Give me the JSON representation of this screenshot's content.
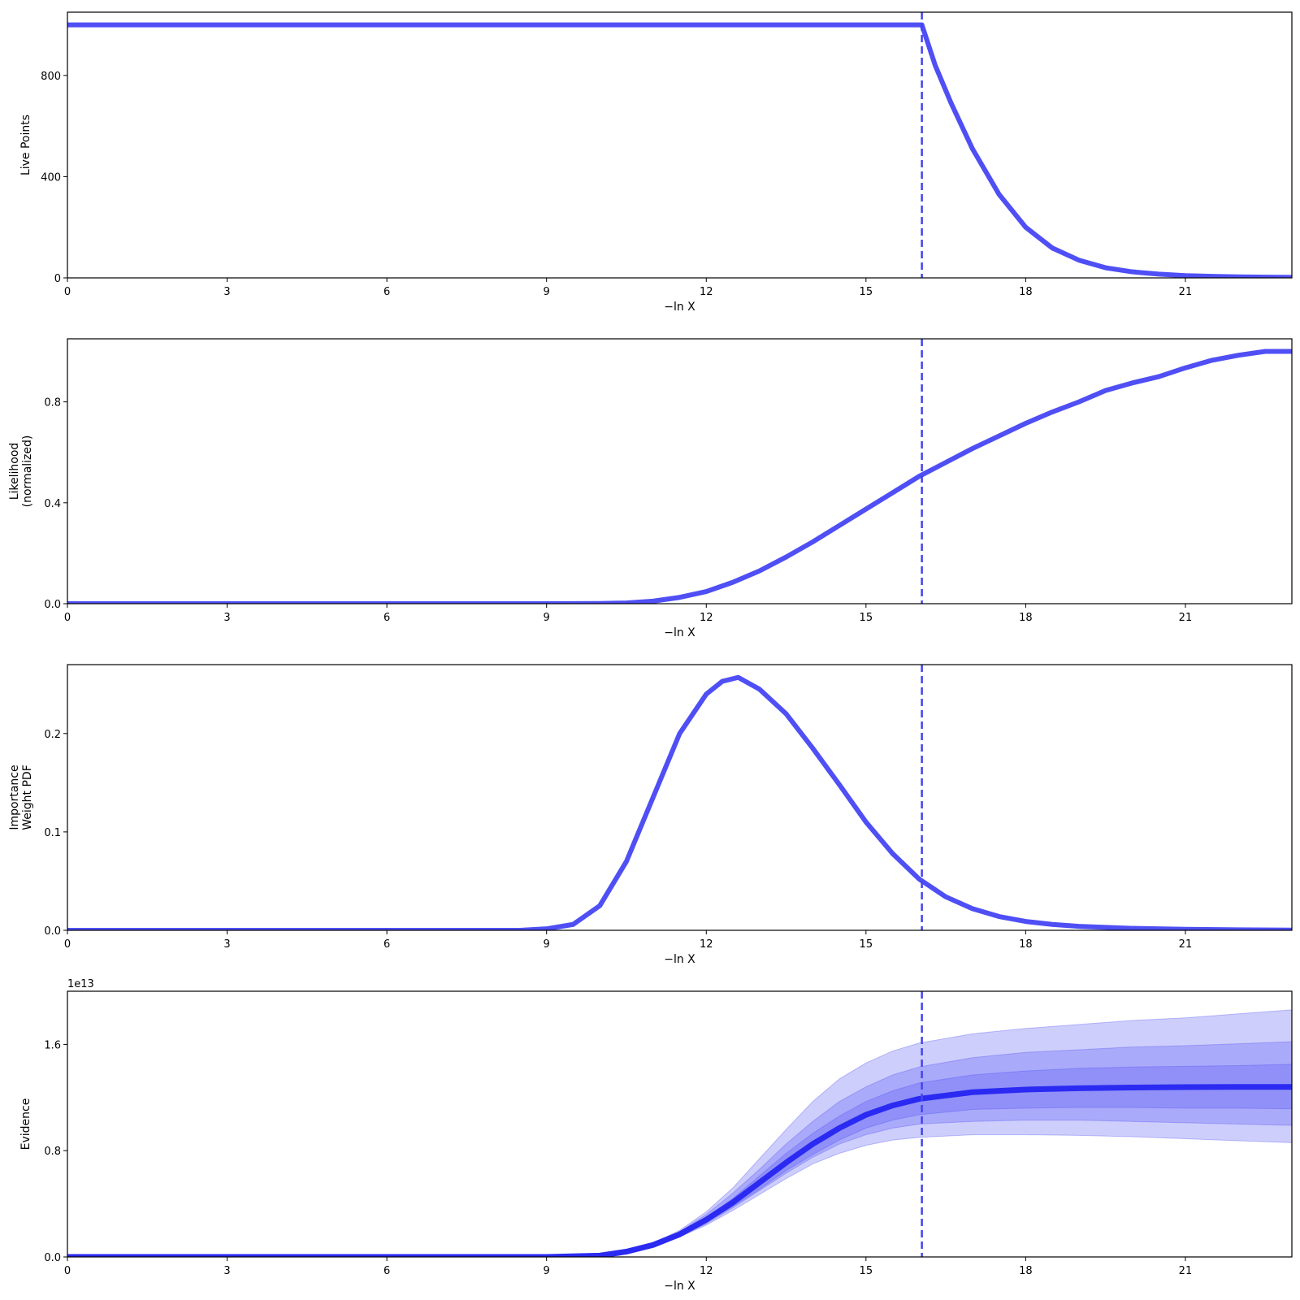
{
  "chart_data": [
    {
      "type": "line",
      "ylabel": [
        "Live Points"
      ],
      "xlabel": "−ln X",
      "xlim": [
        0,
        23
      ],
      "ylim": [
        0,
        1050
      ],
      "xticks": [
        0,
        3,
        6,
        9,
        12,
        15,
        18,
        21
      ],
      "yticks": [
        0,
        400,
        800
      ],
      "vline_x": 16.05,
      "series": [
        {
          "color": "#4f4ff5",
          "x": [
            0,
            16.0,
            16.05,
            16.3,
            16.6,
            17.0,
            17.5,
            18.0,
            18.5,
            19.0,
            19.5,
            20.0,
            20.5,
            21.0,
            21.5,
            22.0,
            22.5,
            23.0
          ],
          "y": [
            1000,
            1000,
            1000,
            840,
            690,
            510,
            330,
            200,
            118,
            70,
            40,
            24,
            15,
            9,
            6,
            4,
            3,
            2
          ]
        }
      ]
    },
    {
      "type": "line",
      "ylabel": [
        "Likelihood",
        "(normalized)"
      ],
      "xlabel": "−ln X",
      "xlim": [
        0,
        23
      ],
      "ylim": [
        0,
        1.05
      ],
      "xticks": [
        0,
        3,
        6,
        9,
        12,
        15,
        18,
        21
      ],
      "yticks": [
        0.0,
        0.4,
        0.8
      ],
      "ytick_labels": [
        "0.0",
        "0.4",
        "0.8"
      ],
      "vline_x": 16.05,
      "series": [
        {
          "color": "#4f4ff5",
          "x": [
            0,
            9.0,
            10.0,
            10.5,
            11.0,
            11.5,
            12.0,
            12.5,
            13.0,
            13.5,
            14.0,
            14.5,
            15.0,
            15.5,
            16.0,
            16.5,
            17.0,
            17.5,
            18.0,
            18.5,
            19.0,
            19.5,
            20.0,
            20.5,
            21.0,
            21.5,
            22.0,
            22.5,
            23.0
          ],
          "y": [
            0,
            0,
            0.001,
            0.003,
            0.01,
            0.025,
            0.048,
            0.085,
            0.13,
            0.185,
            0.245,
            0.31,
            0.375,
            0.44,
            0.505,
            0.56,
            0.615,
            0.665,
            0.715,
            0.76,
            0.8,
            0.845,
            0.875,
            0.9,
            0.935,
            0.965,
            0.985,
            1.0,
            1.0
          ]
        }
      ]
    },
    {
      "type": "line",
      "ylabel": [
        "Importance",
        "Weight PDF"
      ],
      "xlabel": "−ln X",
      "xlim": [
        0,
        23
      ],
      "ylim": [
        0,
        0.27
      ],
      "xticks": [
        0,
        3,
        6,
        9,
        12,
        15,
        18,
        21
      ],
      "yticks": [
        0.0,
        0.1,
        0.2
      ],
      "ytick_labels": [
        "0.0",
        "0.1",
        "0.2"
      ],
      "vline_x": 16.05,
      "series": [
        {
          "color": "#4f4ff5",
          "x": [
            0,
            8.5,
            9.0,
            9.5,
            10.0,
            10.5,
            11.0,
            11.5,
            12.0,
            12.3,
            12.6,
            13.0,
            13.5,
            14.0,
            14.5,
            15.0,
            15.5,
            16.0,
            16.5,
            17.0,
            17.5,
            18.0,
            18.5,
            19.0,
            20.0,
            21.0,
            22.0,
            23.0
          ],
          "y": [
            0,
            0,
            0.0015,
            0.006,
            0.025,
            0.07,
            0.135,
            0.2,
            0.24,
            0.253,
            0.257,
            0.245,
            0.22,
            0.185,
            0.148,
            0.11,
            0.078,
            0.052,
            0.034,
            0.022,
            0.014,
            0.009,
            0.006,
            0.004,
            0.002,
            0.001,
            0.0005,
            0.0002
          ]
        }
      ]
    },
    {
      "type": "area",
      "ylabel": [
        "Evidence"
      ],
      "xlabel": "−ln X",
      "offset_label": "1e13",
      "xlim": [
        0,
        23
      ],
      "ylim": [
        0,
        2.0
      ],
      "xticks": [
        0,
        3,
        6,
        9,
        12,
        15,
        18,
        21
      ],
      "yticks": [
        0.0,
        0.8,
        1.6
      ],
      "ytick_labels": [
        "0.0",
        "0.8",
        "1.6"
      ],
      "vline_x": 16.05,
      "x": [
        0,
        9.0,
        10.0,
        10.5,
        11.0,
        11.5,
        12.0,
        12.5,
        13.0,
        13.5,
        14.0,
        14.5,
        15.0,
        15.5,
        16.0,
        17.0,
        18.0,
        19.0,
        20.0,
        21.0,
        22.0,
        23.0
      ],
      "median": [
        0,
        0,
        0.01,
        0.04,
        0.09,
        0.17,
        0.28,
        0.41,
        0.56,
        0.71,
        0.85,
        0.97,
        1.07,
        1.14,
        1.19,
        1.24,
        1.26,
        1.27,
        1.275,
        1.278,
        1.28,
        1.28
      ],
      "bands": [
        {
          "sigma": 3,
          "color": "#4f4ff5",
          "opacity": 0.28,
          "upper": [
            0,
            0,
            0.012,
            0.045,
            0.105,
            0.2,
            0.34,
            0.52,
            0.74,
            0.96,
            1.17,
            1.34,
            1.46,
            1.55,
            1.61,
            1.68,
            1.72,
            1.75,
            1.78,
            1.8,
            1.83,
            1.86
          ],
          "lower": [
            0,
            0,
            0.008,
            0.035,
            0.08,
            0.15,
            0.24,
            0.35,
            0.47,
            0.59,
            0.7,
            0.78,
            0.84,
            0.88,
            0.9,
            0.92,
            0.92,
            0.915,
            0.905,
            0.89,
            0.875,
            0.86
          ]
        },
        {
          "sigma": 2,
          "color": "#4f4ff5",
          "opacity": 0.28,
          "upper": [
            0,
            0,
            0.011,
            0.043,
            0.1,
            0.19,
            0.32,
            0.48,
            0.66,
            0.85,
            1.02,
            1.17,
            1.28,
            1.37,
            1.43,
            1.5,
            1.54,
            1.56,
            1.58,
            1.59,
            1.605,
            1.62
          ],
          "lower": [
            0,
            0,
            0.009,
            0.037,
            0.083,
            0.155,
            0.25,
            0.37,
            0.5,
            0.63,
            0.75,
            0.85,
            0.92,
            0.97,
            1.0,
            1.02,
            1.03,
            1.03,
            1.02,
            1.01,
            1.0,
            0.99
          ]
        },
        {
          "sigma": 1,
          "color": "#4f4ff5",
          "opacity": 0.28,
          "upper": [
            0,
            0,
            0.0105,
            0.042,
            0.095,
            0.18,
            0.3,
            0.44,
            0.61,
            0.78,
            0.93,
            1.06,
            1.17,
            1.25,
            1.31,
            1.37,
            1.4,
            1.42,
            1.43,
            1.435,
            1.44,
            1.45
          ],
          "lower": [
            0,
            0,
            0.0095,
            0.038,
            0.086,
            0.16,
            0.26,
            0.38,
            0.51,
            0.65,
            0.77,
            0.88,
            0.97,
            1.03,
            1.07,
            1.11,
            1.12,
            1.125,
            1.125,
            1.12,
            1.12,
            1.115
          ]
        }
      ]
    }
  ]
}
